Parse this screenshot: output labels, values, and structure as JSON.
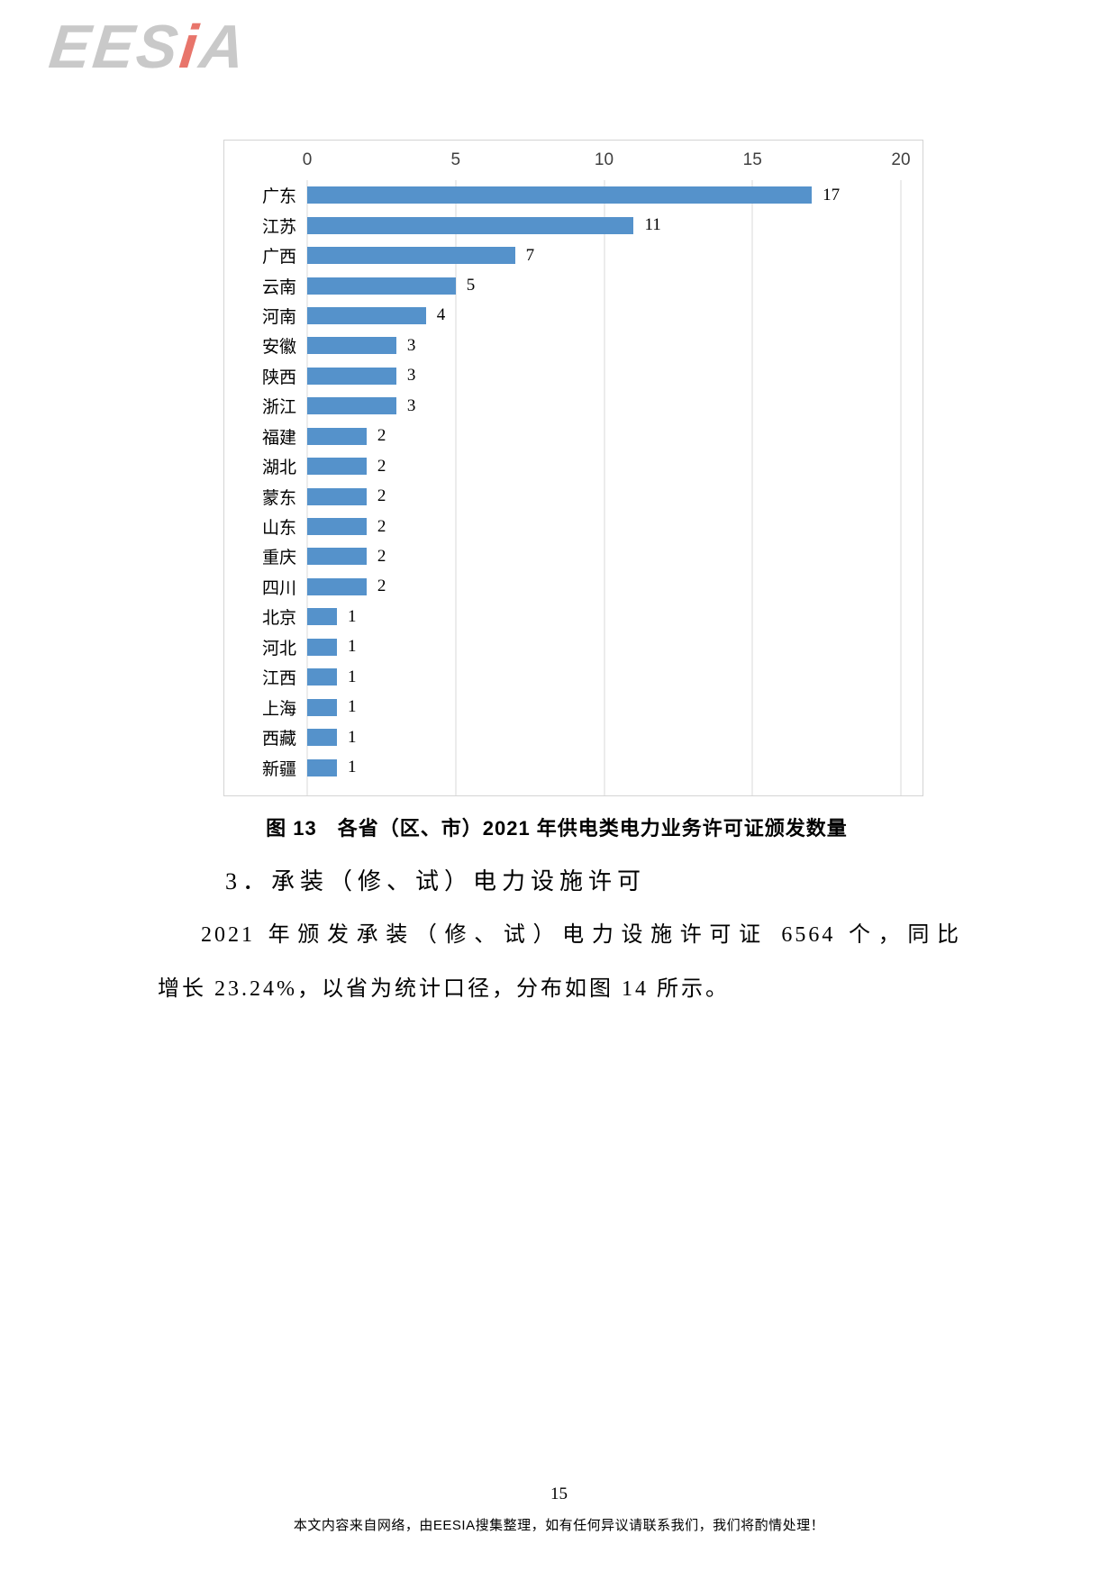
{
  "logo": {
    "part1": "EES",
    "accent": "i",
    "part2": "A",
    "gray_color": "#c9c9c9",
    "accent_color": "#e8756b"
  },
  "chart_data": {
    "type": "bar",
    "orientation": "horizontal",
    "categories": [
      "广东",
      "江苏",
      "广西",
      "云南",
      "河南",
      "安徽",
      "陕西",
      "浙江",
      "福建",
      "湖北",
      "蒙东",
      "山东",
      "重庆",
      "四川",
      "北京",
      "河北",
      "江西",
      "上海",
      "西藏",
      "新疆"
    ],
    "values": [
      17,
      11,
      7,
      5,
      4,
      3,
      3,
      3,
      2,
      2,
      2,
      2,
      2,
      2,
      1,
      1,
      1,
      1,
      1,
      1
    ],
    "xlim": [
      0,
      20
    ],
    "xticks": [
      0,
      5,
      10,
      15,
      20
    ],
    "bar_color": "#5592cb",
    "gridline_color": "#d9d9d9",
    "grid": true,
    "legend": false,
    "axis_labels_position": "top",
    "title": ""
  },
  "figure": {
    "caption": "图 13　各省（区、市）2021 年供电类电力业务许可证颁发数量"
  },
  "section": {
    "heading": "3．承装（修、试）电力设施许可"
  },
  "paragraph": {
    "lines": [
      "2021 年颁发承装（修、试）电力设施许可证 6564 个，同比",
      "增长 23.24%，以省为统计口径，分布如图 14 所示。"
    ]
  },
  "footer": {
    "page_number": "15",
    "note": "本文内容来自网络，由EESIA搜集整理，如有任何异议请联系我们，我们将酌情处理！"
  }
}
